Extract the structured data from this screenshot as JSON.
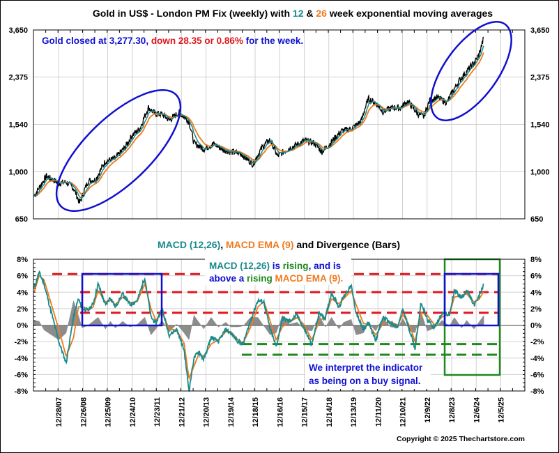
{
  "colors": {
    "price": "#000000",
    "ema12": "#1a8a8a",
    "ema26": "#f07a1e",
    "macd": "#1a8a8a",
    "macd_ema": "#f07a1e",
    "divergence": "#8c8c8c",
    "annot_blue": "#1010d0",
    "annot_red": "#e0161c",
    "annot_green": "#1e8a1e",
    "grid": "#d0d0d0"
  },
  "chart_data": [
    {
      "type": "line",
      "title_parts": [
        {
          "text": "Gold in US$ - London PM Fix (weekly) with ",
          "color": "#000000"
        },
        {
          "text": "12",
          "color": "#1a8a8a"
        },
        {
          "text": " & ",
          "color": "#000000"
        },
        {
          "text": "26",
          "color": "#f07a1e"
        },
        {
          "text": " week exponential moving averages",
          "color": "#000000"
        }
      ],
      "yscale": "log",
      "ylim": [
        650,
        3650
      ],
      "yticks": [
        "3,650",
        "2,375",
        "1,540",
        "1,000",
        "650"
      ],
      "ytick_values": [
        3650,
        2375,
        1540,
        1000,
        650
      ],
      "annotation_parts": [
        {
          "text": "Gold closed at 3,277.30, ",
          "color": "#1010d0"
        },
        {
          "text": "down 28.35 or 0.86%",
          "color": "#e0161c"
        },
        {
          "text": " for the week.",
          "color": "#1010d0"
        }
      ],
      "x_years": [
        2007.0,
        2007.5,
        2008.0,
        2008.3,
        2008.6,
        2008.85,
        2009.2,
        2009.5,
        2009.9,
        2010.3,
        2010.7,
        2011.0,
        2011.3,
        2011.65,
        2011.9,
        2012.2,
        2012.5,
        2012.9,
        2013.3,
        2013.5,
        2013.9,
        2014.3,
        2014.7,
        2015.0,
        2015.4,
        2015.9,
        2016.3,
        2016.6,
        2016.9,
        2017.3,
        2017.7,
        2018.0,
        2018.4,
        2018.7,
        2019.0,
        2019.5,
        2019.9,
        2020.3,
        2020.6,
        2020.9,
        2021.2,
        2021.6,
        2021.9,
        2022.2,
        2022.6,
        2022.85,
        2023.1,
        2023.4,
        2023.8,
        2024.0,
        2024.3,
        2024.6,
        2024.9,
        2025.1,
        2025.3
      ],
      "series": [
        {
          "name": "Gold weekly close",
          "values": [
            800,
            960,
            900,
            910,
            860,
            750,
            920,
            930,
            1100,
            1130,
            1250,
            1400,
            1480,
            1800,
            1700,
            1690,
            1600,
            1720,
            1580,
            1300,
            1230,
            1290,
            1220,
            1200,
            1180,
            1070,
            1260,
            1340,
            1150,
            1230,
            1280,
            1330,
            1300,
            1200,
            1280,
            1450,
            1480,
            1580,
            1950,
            1870,
            1730,
            1800,
            1790,
            1900,
            1700,
            1650,
            1920,
            1970,
            1880,
            2050,
            2300,
            2500,
            2700,
            2900,
            3400
          ]
        }
      ]
    },
    {
      "type": "line",
      "title_parts": [
        {
          "text": "MACD (12,26)",
          "color": "#1a8a8a"
        },
        {
          "text": ", ",
          "color": "#000000"
        },
        {
          "text": "MACD EMA (9)",
          "color": "#f07a1e"
        },
        {
          "text": " and Divergence (Bars)",
          "color": "#000000"
        }
      ],
      "ylim": [
        -8,
        8
      ],
      "yticks": [
        "8%",
        "6%",
        "4%",
        "2%",
        "0%",
        "-2%",
        "-4%",
        "-6%",
        "-8%"
      ],
      "ytick_values": [
        8,
        6,
        4,
        2,
        0,
        -2,
        -4,
        -6,
        -8
      ],
      "xticks": [
        "12/28/07",
        "12/26/08",
        "12/25/09",
        "12/24/10",
        "12/23/11",
        "12/21/12",
        "12/20/13",
        "12/19/14",
        "12/18/15",
        "12/16/16",
        "12/15/17",
        "12/14/18",
        "12/13/19",
        "12/11/20",
        "12/10/21",
        "12/9/22",
        "12/8/23",
        "12/6/24",
        "12/5/25"
      ],
      "macd_x": [
        2007.0,
        2007.2,
        2007.4,
        2007.7,
        2008.0,
        2008.3,
        2008.6,
        2008.8,
        2008.95,
        2009.2,
        2009.4,
        2009.6,
        2009.9,
        2010.1,
        2010.3,
        2010.6,
        2010.9,
        2011.2,
        2011.5,
        2011.75,
        2011.95,
        2012.2,
        2012.5,
        2012.8,
        2013.1,
        2013.3,
        2013.5,
        2013.7,
        2013.9,
        2014.2,
        2014.5,
        2014.8,
        2015.0,
        2015.3,
        2015.5,
        2015.8,
        2016.1,
        2016.35,
        2016.6,
        2016.85,
        2017.1,
        2017.4,
        2017.7,
        2018.0,
        2018.3,
        2018.6,
        2018.85,
        2019.1,
        2019.4,
        2019.6,
        2019.9,
        2020.1,
        2020.4,
        2020.6,
        2020.9,
        2021.2,
        2021.5,
        2021.8,
        2022.0,
        2022.3,
        2022.5,
        2022.75,
        2023.0,
        2023.3,
        2023.6,
        2023.9,
        2024.1,
        2024.4,
        2024.6,
        2024.9,
        2025.1,
        2025.3
      ],
      "series": [
        {
          "name": "MACD (12,26)",
          "values": [
            4.5,
            6.4,
            5.0,
            1.5,
            -2.0,
            -4.6,
            1.0,
            3.2,
            2.0,
            1.8,
            2.6,
            5.0,
            2.4,
            3.4,
            2.2,
            3.8,
            2.5,
            3.0,
            5.8,
            1.0,
            0.2,
            2.0,
            -1.2,
            -0.5,
            -3.0,
            -8.0,
            -4.0,
            -3.2,
            -4.2,
            -1.5,
            -2.0,
            -0.5,
            -1.0,
            -2.0,
            -2.3,
            0.5,
            3.0,
            2.8,
            -0.5,
            -2.6,
            0.8,
            0.5,
            1.2,
            -0.5,
            -2.4,
            1.5,
            0.8,
            4.0,
            2.2,
            3.5,
            4.8,
            1.5,
            -0.6,
            0.3,
            -1.8,
            1.0,
            0.2,
            -0.3,
            2.0,
            -0.8,
            -2.8,
            2.8,
            0.6,
            -0.3,
            1.5,
            1.2,
            4.2,
            3.3,
            4.3,
            2.4,
            3.4,
            5.1
          ]
        },
        {
          "name": "MACD EMA (9)",
          "values": [
            4.0,
            6.0,
            5.5,
            2.5,
            -0.5,
            -3.8,
            -1.5,
            2.2,
            2.3,
            1.8,
            2.2,
            4.2,
            2.8,
            3.0,
            2.5,
            3.4,
            2.7,
            2.9,
            5.0,
            2.0,
            0.6,
            1.5,
            -0.5,
            -0.6,
            -2.2,
            -6.5,
            -5.0,
            -3.5,
            -3.8,
            -2.3,
            -1.8,
            -0.8,
            -0.8,
            -1.8,
            -2.2,
            -0.3,
            2.2,
            2.9,
            0.5,
            -1.8,
            -0.2,
            0.4,
            0.9,
            0.0,
            -1.8,
            0.5,
            1.0,
            3.2,
            2.6,
            3.2,
            4.2,
            2.5,
            0.2,
            0.1,
            -1.2,
            0.2,
            0.4,
            0.0,
            1.3,
            -0.2,
            -2.0,
            1.5,
            1.2,
            0.0,
            1.0,
            1.3,
            3.4,
            3.6,
            3.8,
            2.8,
            3.1,
            4.1
          ]
        }
      ],
      "red_levels": [
        6.2,
        4.0,
        1.5
      ],
      "green_levels": [
        -2.3,
        -3.6
      ],
      "annotation_1_parts": [
        {
          "text": "MACD (12,26)",
          "color": "#1a8a8a"
        },
        {
          "text": " is ",
          "color": "#1010d0"
        },
        {
          "text": "rising",
          "color": "#1e8a1e"
        },
        {
          "text": ", and is",
          "color": "#1010d0"
        }
      ],
      "annotation_2_parts": [
        {
          "text": "above a ",
          "color": "#1010d0"
        },
        {
          "text": "rising",
          "color": "#1e8a1e"
        },
        {
          "text": " MACD EMA (9).",
          "color": "#f07a1e"
        }
      ],
      "annotation_3": [
        "We interpret the indicator",
        "as being on a buy signal."
      ]
    }
  ],
  "footer": {
    "copyright": "Copyright © 2025 Thechartstore.com"
  }
}
